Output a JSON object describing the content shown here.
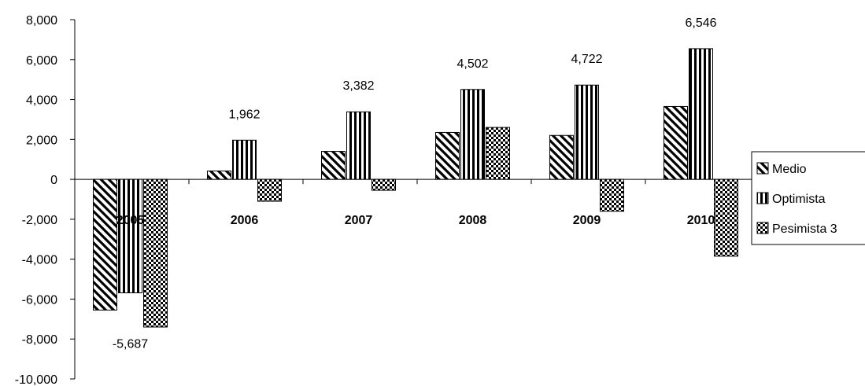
{
  "chart_data": {
    "type": "bar",
    "categories": [
      "2005",
      "2006",
      "2007",
      "2008",
      "2009",
      "2010"
    ],
    "series": [
      {
        "name": "Medio",
        "values": [
          -6550,
          420,
          1400,
          2350,
          2200,
          3650
        ],
        "pattern": "diagonal"
      },
      {
        "name": "Optimista",
        "values": [
          -5687,
          1962,
          3382,
          4502,
          4722,
          6546
        ],
        "pattern": "vertical"
      },
      {
        "name": "Pesimista 3",
        "values": [
          -7400,
          -1100,
          -550,
          2600,
          -1600,
          -3850
        ],
        "pattern": "checker"
      }
    ],
    "data_labels": {
      "series": "Optimista",
      "values": [
        "-5,687",
        "1,962",
        "3,382",
        "4,502",
        "4,722",
        "6,546"
      ]
    },
    "y_ticks": [
      "8,000",
      "6,000",
      "4,000",
      "2,000",
      "0",
      "-2,000",
      "-4,000",
      "-6,000",
      "-8,000",
      "-10,000"
    ],
    "ylim": [
      -10000,
      8000
    ],
    "grid": false,
    "legend_position": "right",
    "title": "",
    "xlabel": "",
    "ylabel": ""
  }
}
